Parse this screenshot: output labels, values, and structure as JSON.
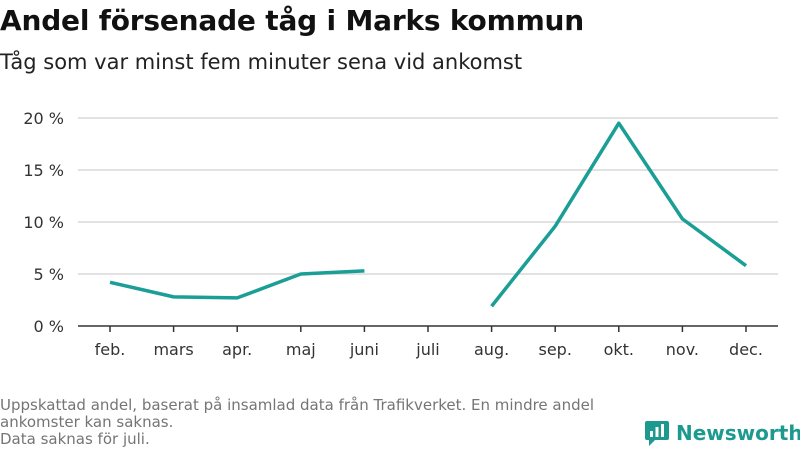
{
  "title": "Andel försenade tåg i Marks kommun",
  "subtitle": "Tåg som var minst fem minuter sena vid ankomst",
  "footnote": {
    "line1": "Uppskattad andel, baserat på insamlad data från Trafikverket. En mindre andel",
    "line2": "ankomster kan saknas.",
    "line3": "Data saknas för juli."
  },
  "brand": {
    "name": "Newsworthy",
    "icon": "newsworthy-logo-icon"
  },
  "colors": {
    "line": "#1a9e96",
    "grid": "#d9d9d9",
    "axis": "#333333",
    "brand": "#1d9a8f"
  },
  "chart_data": {
    "type": "line",
    "title": "Andel försenade tåg i Marks kommun",
    "subtitle": "Tåg som var minst fem minuter sena vid ankomst",
    "categories": [
      "feb.",
      "mars",
      "apr.",
      "maj",
      "juni",
      "juli",
      "aug.",
      "sep.",
      "okt.",
      "nov.",
      "dec."
    ],
    "series": [
      {
        "values": [
          4.2,
          2.8,
          2.7,
          5.0,
          5.3,
          null,
          1.9,
          9.6,
          19.5,
          10.3,
          5.8
        ]
      }
    ],
    "ylim": [
      0,
      20
    ],
    "yticks": [
      0,
      5,
      10,
      15,
      20
    ],
    "ytick_labels": [
      "0 %",
      "5 %",
      "10 %",
      "15 %",
      "20 %"
    ],
    "grid": true,
    "legend": "none"
  }
}
